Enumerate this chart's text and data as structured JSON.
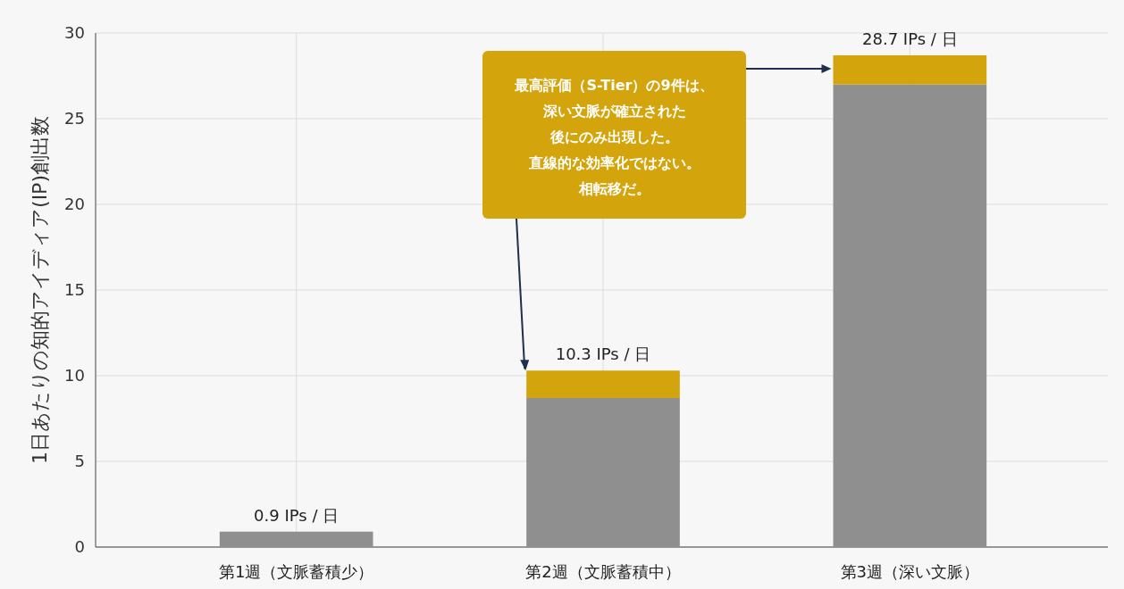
{
  "chart_data": {
    "type": "bar",
    "ylabel": "1日あたりの知的アイディア(IP)創出数",
    "categories": [
      "第1週（文脈蓄積少）",
      "第2週（文脈蓄積中）",
      "第3週（深い文脈）"
    ],
    "series": [
      {
        "color": "#8f8f8f",
        "values": [
          0.9,
          8.7,
          27.0
        ]
      },
      {
        "color": "#d4a40c",
        "values": [
          0,
          1.6,
          1.7
        ]
      }
    ],
    "stacked": true,
    "totals": [
      "0.9 IPs / 日",
      "10.3 IPs / 日",
      "28.7 IPs / 日"
    ],
    "ylim": [
      0,
      30
    ],
    "yticks": [
      0,
      5,
      10,
      15,
      20,
      25,
      30
    ],
    "grid": true,
    "annotations": [
      "最高評価（S-Tier）の9件は、",
      "深い文脈が確立された",
      "後にのみ出現した。",
      "直線的な効率化ではない。",
      "相転移だ。"
    ]
  }
}
